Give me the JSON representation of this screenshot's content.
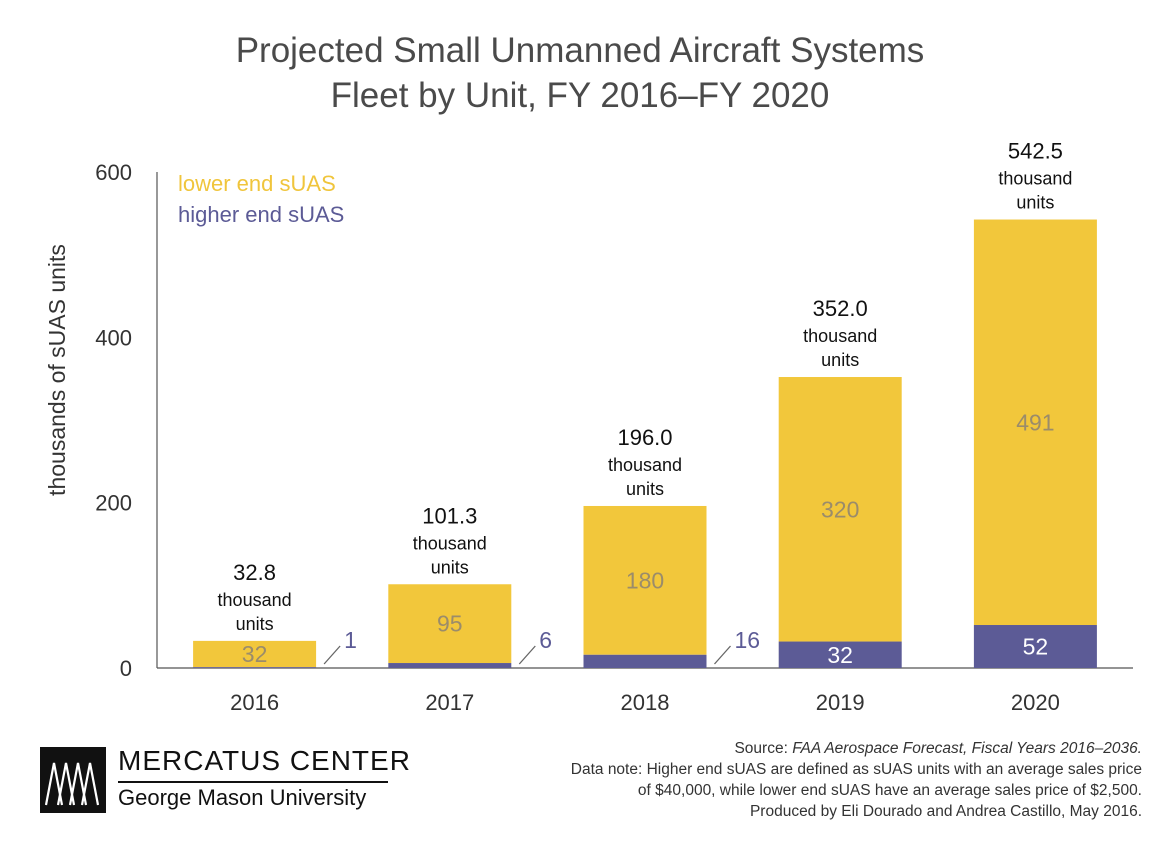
{
  "chart_data": {
    "type": "bar",
    "stacked": true,
    "title_lines": [
      "Projected Small Unmanned Aircraft Systems",
      "Fleet by Unit, FY 2016–FY 2020"
    ],
    "ylabel": "thousands of sUAS units",
    "xlabel": "",
    "ylim": [
      0,
      600
    ],
    "yticks": [
      "0",
      "200",
      "400",
      "600"
    ],
    "ytick_values": [
      0,
      200,
      400,
      600
    ],
    "categories": [
      "2016",
      "2017",
      "2018",
      "2019",
      "2020"
    ],
    "series": [
      {
        "name": "higher end sUAS",
        "color": "#5c5b96",
        "values": [
          1,
          6,
          16,
          32,
          52
        ],
        "labels": [
          "1",
          "6",
          "16",
          "32",
          "52"
        ]
      },
      {
        "name": "lower end sUAS",
        "color": "#f2c73b",
        "values": [
          32,
          95,
          180,
          320,
          491
        ],
        "labels": [
          "32",
          "95",
          "180",
          "320",
          "491"
        ]
      }
    ],
    "totals": [
      "32.8",
      "101.3",
      "196.0",
      "352.0",
      "542.5"
    ],
    "totals_plot": [
      32.8,
      101.3,
      196.0,
      352.0,
      542.5
    ],
    "total_unit_lines": [
      "thousand",
      "units"
    ],
    "legend_position": "top-left",
    "grid": false
  },
  "logo": {
    "name": "MERCATUS CENTER",
    "sub": "George Mason University"
  },
  "footer": {
    "source_prefix": "Source: ",
    "source_title": "FAA Aerospace Forecast, Fiscal Years 2016–2036.",
    "note_line1": "Data note: Higher end sUAS are defined as sUAS units with an average sales price",
    "note_line2": "of $40,000, while lower end sUAS have an average sales price of $2,500.",
    "credit": "Produced by Eli Dourado and Andrea Castillo, May 2016."
  }
}
